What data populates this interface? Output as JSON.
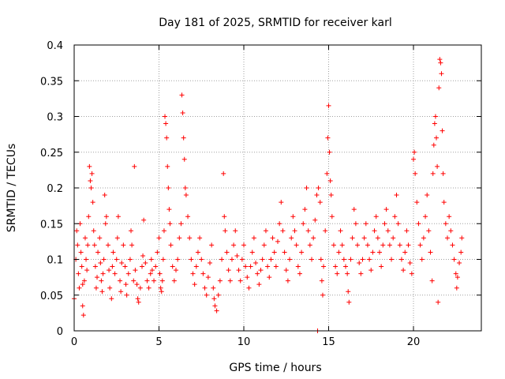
{
  "chart_data": {
    "type": "scatter",
    "title": "Day 181 of 2025, SRMTID for receiver karl",
    "xlabel": "GPS time / hours",
    "ylabel": "SRMTID / TECUs",
    "xlim": [
      0,
      24
    ],
    "ylim": [
      0,
      0.4
    ],
    "xticks": [
      0,
      5,
      10,
      15,
      20
    ],
    "yticks": [
      0,
      0.05,
      0.1,
      0.15,
      0.2,
      0.25,
      0.3,
      0.35,
      0.4
    ],
    "xtick_labels": [
      "0",
      "5",
      "10",
      "15",
      "20"
    ],
    "ytick_labels": [
      "0",
      "0.05",
      "0.1",
      "0.15",
      "0.2",
      "0.25",
      "0.3",
      "0.35",
      "0.4"
    ],
    "grid": true,
    "marker": "plus",
    "color": "#ff0000",
    "series": [
      {
        "name": "SRMTID",
        "points": [
          [
            0.0,
            0.045
          ],
          [
            0.1,
            0.1
          ],
          [
            0.15,
            0.14
          ],
          [
            0.2,
            0.12
          ],
          [
            0.25,
            0.08
          ],
          [
            0.3,
            0.06
          ],
          [
            0.35,
            0.15
          ],
          [
            0.4,
            0.11
          ],
          [
            0.45,
            0.09
          ],
          [
            0.5,
            0.065
          ],
          [
            0.5,
            0.035
          ],
          [
            0.55,
            0.022
          ],
          [
            0.6,
            0.07
          ],
          [
            0.65,
            0.13
          ],
          [
            0.7,
            0.1
          ],
          [
            0.75,
            0.085
          ],
          [
            0.8,
            0.12
          ],
          [
            0.85,
            0.16
          ],
          [
            0.9,
            0.23
          ],
          [
            0.95,
            0.21
          ],
          [
            1.0,
            0.2
          ],
          [
            1.05,
            0.22
          ],
          [
            1.1,
            0.18
          ],
          [
            1.15,
            0.14
          ],
          [
            1.2,
            0.12
          ],
          [
            1.25,
            0.09
          ],
          [
            1.3,
            0.06
          ],
          [
            1.35,
            0.075
          ],
          [
            1.4,
            0.11
          ],
          [
            1.5,
            0.13
          ],
          [
            1.55,
            0.095
          ],
          [
            1.6,
            0.07
          ],
          [
            1.65,
            0.055
          ],
          [
            1.7,
            0.08
          ],
          [
            1.75,
            0.1
          ],
          [
            1.8,
            0.19
          ],
          [
            1.85,
            0.15
          ],
          [
            1.9,
            0.16
          ],
          [
            2.0,
            0.12
          ],
          [
            2.05,
            0.085
          ],
          [
            2.1,
            0.06
          ],
          [
            2.2,
            0.045
          ],
          [
            2.25,
            0.09
          ],
          [
            2.3,
            0.11
          ],
          [
            2.4,
            0.08
          ],
          [
            2.5,
            0.1
          ],
          [
            2.55,
            0.13
          ],
          [
            2.6,
            0.16
          ],
          [
            2.7,
            0.07
          ],
          [
            2.75,
            0.055
          ],
          [
            2.8,
            0.095
          ],
          [
            2.9,
            0.12
          ],
          [
            3.0,
            0.09
          ],
          [
            3.05,
            0.065
          ],
          [
            3.1,
            0.05
          ],
          [
            3.2,
            0.08
          ],
          [
            3.3,
            0.1
          ],
          [
            3.35,
            0.14
          ],
          [
            3.4,
            0.12
          ],
          [
            3.5,
            0.07
          ],
          [
            3.55,
            0.23
          ],
          [
            3.6,
            0.085
          ],
          [
            3.7,
            0.065
          ],
          [
            3.75,
            0.045
          ],
          [
            3.8,
            0.04
          ],
          [
            3.9,
            0.06
          ],
          [
            4.0,
            0.09
          ],
          [
            4.05,
            0.105
          ],
          [
            4.1,
            0.155
          ],
          [
            4.2,
            0.095
          ],
          [
            4.3,
            0.07
          ],
          [
            4.4,
            0.06
          ],
          [
            4.5,
            0.08
          ],
          [
            4.55,
            0.1
          ],
          [
            4.6,
            0.085
          ],
          [
            4.7,
            0.07
          ],
          [
            4.8,
            0.09
          ],
          [
            4.9,
            0.11
          ],
          [
            5.0,
            0.13
          ],
          [
            5.05,
            0.08
          ],
          [
            5.1,
            0.06
          ],
          [
            5.15,
            0.055
          ],
          [
            5.2,
            0.07
          ],
          [
            5.25,
            0.1
          ],
          [
            5.3,
            0.14
          ],
          [
            5.35,
            0.3
          ],
          [
            5.4,
            0.29
          ],
          [
            5.45,
            0.27
          ],
          [
            5.5,
            0.23
          ],
          [
            5.55,
            0.2
          ],
          [
            5.6,
            0.17
          ],
          [
            5.65,
            0.15
          ],
          [
            5.7,
            0.12
          ],
          [
            5.8,
            0.09
          ],
          [
            5.9,
            0.07
          ],
          [
            6.0,
            0.085
          ],
          [
            6.1,
            0.1
          ],
          [
            6.2,
            0.13
          ],
          [
            6.3,
            0.15
          ],
          [
            6.35,
            0.33
          ],
          [
            6.4,
            0.305
          ],
          [
            6.45,
            0.27
          ],
          [
            6.5,
            0.24
          ],
          [
            6.55,
            0.2
          ],
          [
            6.6,
            0.19
          ],
          [
            6.7,
            0.16
          ],
          [
            6.8,
            0.13
          ],
          [
            6.9,
            0.1
          ],
          [
            7.0,
            0.08
          ],
          [
            7.1,
            0.065
          ],
          [
            7.2,
            0.09
          ],
          [
            7.3,
            0.11
          ],
          [
            7.4,
            0.13
          ],
          [
            7.5,
            0.1
          ],
          [
            7.6,
            0.08
          ],
          [
            7.7,
            0.06
          ],
          [
            7.8,
            0.05
          ],
          [
            7.9,
            0.075
          ],
          [
            8.0,
            0.095
          ],
          [
            8.1,
            0.12
          ],
          [
            8.2,
            0.06
          ],
          [
            8.25,
            0.045
          ],
          [
            8.3,
            0.035
          ],
          [
            8.4,
            0.028
          ],
          [
            8.5,
            0.05
          ],
          [
            8.6,
            0.07
          ],
          [
            8.7,
            0.1
          ],
          [
            8.8,
            0.22
          ],
          [
            8.85,
            0.16
          ],
          [
            8.9,
            0.14
          ],
          [
            9.0,
            0.11
          ],
          [
            9.1,
            0.085
          ],
          [
            9.2,
            0.07
          ],
          [
            9.3,
            0.1
          ],
          [
            9.4,
            0.12
          ],
          [
            9.5,
            0.14
          ],
          [
            9.6,
            0.105
          ],
          [
            9.7,
            0.085
          ],
          [
            9.8,
            0.07
          ],
          [
            9.9,
            0.1
          ],
          [
            10.0,
            0.12
          ],
          [
            10.1,
            0.09
          ],
          [
            10.2,
            0.075
          ],
          [
            10.3,
            0.06
          ],
          [
            10.4,
            0.09
          ],
          [
            10.5,
            0.11
          ],
          [
            10.6,
            0.13
          ],
          [
            10.7,
            0.095
          ],
          [
            10.8,
            0.08
          ],
          [
            10.9,
            0.065
          ],
          [
            11.0,
            0.085
          ],
          [
            11.1,
            0.1
          ],
          [
            11.2,
            0.12
          ],
          [
            11.3,
            0.14
          ],
          [
            11.4,
            0.09
          ],
          [
            11.5,
            0.075
          ],
          [
            11.6,
            0.1
          ],
          [
            11.7,
            0.13
          ],
          [
            11.8,
            0.11
          ],
          [
            11.9,
            0.09
          ],
          [
            12.0,
            0.125
          ],
          [
            12.1,
            0.15
          ],
          [
            12.2,
            0.18
          ],
          [
            12.3,
            0.14
          ],
          [
            12.4,
            0.11
          ],
          [
            12.5,
            0.085
          ],
          [
            12.6,
            0.07
          ],
          [
            12.7,
            0.1
          ],
          [
            12.8,
            0.13
          ],
          [
            12.9,
            0.16
          ],
          [
            13.0,
            0.14
          ],
          [
            13.1,
            0.12
          ],
          [
            13.2,
            0.09
          ],
          [
            13.3,
            0.08
          ],
          [
            13.4,
            0.11
          ],
          [
            13.5,
            0.15
          ],
          [
            13.6,
            0.17
          ],
          [
            13.7,
            0.2
          ],
          [
            13.8,
            0.14
          ],
          [
            13.9,
            0.12
          ],
          [
            14.0,
            0.1
          ],
          [
            14.1,
            0.13
          ],
          [
            14.2,
            0.155
          ],
          [
            14.3,
            0.19
          ],
          [
            14.35,
            0.0
          ],
          [
            14.4,
            0.2
          ],
          [
            14.5,
            0.18
          ],
          [
            14.55,
            0.1
          ],
          [
            14.6,
            0.07
          ],
          [
            14.65,
            0.05
          ],
          [
            14.7,
            0.09
          ],
          [
            14.8,
            0.14
          ],
          [
            14.9,
            0.22
          ],
          [
            14.95,
            0.27
          ],
          [
            15.0,
            0.315
          ],
          [
            15.05,
            0.25
          ],
          [
            15.1,
            0.21
          ],
          [
            15.15,
            0.19
          ],
          [
            15.2,
            0.16
          ],
          [
            15.3,
            0.12
          ],
          [
            15.4,
            0.09
          ],
          [
            15.5,
            0.08
          ],
          [
            15.6,
            0.11
          ],
          [
            15.7,
            0.14
          ],
          [
            15.8,
            0.12
          ],
          [
            15.9,
            0.1
          ],
          [
            16.0,
            0.09
          ],
          [
            16.1,
            0.08
          ],
          [
            16.15,
            0.055
          ],
          [
            16.2,
            0.04
          ],
          [
            16.3,
            0.1
          ],
          [
            16.4,
            0.13
          ],
          [
            16.5,
            0.17
          ],
          [
            16.6,
            0.15
          ],
          [
            16.7,
            0.12
          ],
          [
            16.8,
            0.095
          ],
          [
            16.9,
            0.08
          ],
          [
            17.0,
            0.1
          ],
          [
            17.1,
            0.13
          ],
          [
            17.2,
            0.15
          ],
          [
            17.3,
            0.12
          ],
          [
            17.4,
            0.1
          ],
          [
            17.5,
            0.085
          ],
          [
            17.6,
            0.11
          ],
          [
            17.7,
            0.14
          ],
          [
            17.8,
            0.16
          ],
          [
            17.9,
            0.13
          ],
          [
            18.0,
            0.11
          ],
          [
            18.1,
            0.09
          ],
          [
            18.2,
            0.12
          ],
          [
            18.3,
            0.15
          ],
          [
            18.4,
            0.17
          ],
          [
            18.5,
            0.14
          ],
          [
            18.6,
            0.12
          ],
          [
            18.7,
            0.1
          ],
          [
            18.8,
            0.13
          ],
          [
            18.9,
            0.16
          ],
          [
            19.0,
            0.19
          ],
          [
            19.1,
            0.15
          ],
          [
            19.2,
            0.12
          ],
          [
            19.3,
            0.1
          ],
          [
            19.4,
            0.085
          ],
          [
            19.5,
            0.11
          ],
          [
            19.6,
            0.14
          ],
          [
            19.7,
            0.12
          ],
          [
            19.8,
            0.095
          ],
          [
            19.9,
            0.08
          ],
          [
            20.0,
            0.24
          ],
          [
            20.05,
            0.25
          ],
          [
            20.1,
            0.22
          ],
          [
            20.2,
            0.18
          ],
          [
            20.3,
            0.15
          ],
          [
            20.4,
            0.12
          ],
          [
            20.5,
            0.1
          ],
          [
            20.6,
            0.13
          ],
          [
            20.7,
            0.16
          ],
          [
            20.8,
            0.19
          ],
          [
            20.9,
            0.14
          ],
          [
            21.0,
            0.11
          ],
          [
            21.1,
            0.07
          ],
          [
            21.15,
            0.22
          ],
          [
            21.2,
            0.26
          ],
          [
            21.25,
            0.29
          ],
          [
            21.3,
            0.3
          ],
          [
            21.35,
            0.27
          ],
          [
            21.4,
            0.23
          ],
          [
            21.45,
            0.04
          ],
          [
            21.5,
            0.34
          ],
          [
            21.55,
            0.38
          ],
          [
            21.6,
            0.375
          ],
          [
            21.65,
            0.36
          ],
          [
            21.7,
            0.28
          ],
          [
            21.75,
            0.22
          ],
          [
            21.8,
            0.18
          ],
          [
            21.9,
            0.15
          ],
          [
            22.0,
            0.13
          ],
          [
            22.1,
            0.16
          ],
          [
            22.2,
            0.14
          ],
          [
            22.3,
            0.12
          ],
          [
            22.4,
            0.1
          ],
          [
            22.5,
            0.08
          ],
          [
            22.55,
            0.06
          ],
          [
            22.6,
            0.075
          ],
          [
            22.7,
            0.095
          ],
          [
            22.8,
            0.11
          ],
          [
            22.85,
            0.13
          ]
        ]
      }
    ]
  }
}
